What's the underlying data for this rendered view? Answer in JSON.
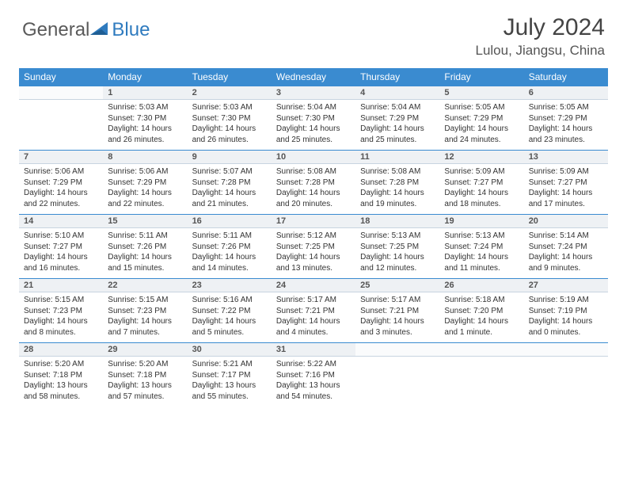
{
  "brand": {
    "word1": "General",
    "word2": "Blue"
  },
  "title": "July 2024",
  "location": "Lulou, Jiangsu, China",
  "colors": {
    "header_bg": "#3a8bd0",
    "daybar_bg": "#eef1f4",
    "rule": "#3a8bd0",
    "text": "#333333",
    "logo_gray": "#5a5a5a",
    "logo_blue": "#2f7bbf"
  },
  "weekdays": [
    "Sunday",
    "Monday",
    "Tuesday",
    "Wednesday",
    "Thursday",
    "Friday",
    "Saturday"
  ],
  "weeks": [
    [
      null,
      {
        "n": "1",
        "sr": "5:03 AM",
        "ss": "7:30 PM",
        "dl": "14 hours and 26 minutes."
      },
      {
        "n": "2",
        "sr": "5:03 AM",
        "ss": "7:30 PM",
        "dl": "14 hours and 26 minutes."
      },
      {
        "n": "3",
        "sr": "5:04 AM",
        "ss": "7:30 PM",
        "dl": "14 hours and 25 minutes."
      },
      {
        "n": "4",
        "sr": "5:04 AM",
        "ss": "7:29 PM",
        "dl": "14 hours and 25 minutes."
      },
      {
        "n": "5",
        "sr": "5:05 AM",
        "ss": "7:29 PM",
        "dl": "14 hours and 24 minutes."
      },
      {
        "n": "6",
        "sr": "5:05 AM",
        "ss": "7:29 PM",
        "dl": "14 hours and 23 minutes."
      }
    ],
    [
      {
        "n": "7",
        "sr": "5:06 AM",
        "ss": "7:29 PM",
        "dl": "14 hours and 22 minutes."
      },
      {
        "n": "8",
        "sr": "5:06 AM",
        "ss": "7:29 PM",
        "dl": "14 hours and 22 minutes."
      },
      {
        "n": "9",
        "sr": "5:07 AM",
        "ss": "7:28 PM",
        "dl": "14 hours and 21 minutes."
      },
      {
        "n": "10",
        "sr": "5:08 AM",
        "ss": "7:28 PM",
        "dl": "14 hours and 20 minutes."
      },
      {
        "n": "11",
        "sr": "5:08 AM",
        "ss": "7:28 PM",
        "dl": "14 hours and 19 minutes."
      },
      {
        "n": "12",
        "sr": "5:09 AM",
        "ss": "7:27 PM",
        "dl": "14 hours and 18 minutes."
      },
      {
        "n": "13",
        "sr": "5:09 AM",
        "ss": "7:27 PM",
        "dl": "14 hours and 17 minutes."
      }
    ],
    [
      {
        "n": "14",
        "sr": "5:10 AM",
        "ss": "7:27 PM",
        "dl": "14 hours and 16 minutes."
      },
      {
        "n": "15",
        "sr": "5:11 AM",
        "ss": "7:26 PM",
        "dl": "14 hours and 15 minutes."
      },
      {
        "n": "16",
        "sr": "5:11 AM",
        "ss": "7:26 PM",
        "dl": "14 hours and 14 minutes."
      },
      {
        "n": "17",
        "sr": "5:12 AM",
        "ss": "7:25 PM",
        "dl": "14 hours and 13 minutes."
      },
      {
        "n": "18",
        "sr": "5:13 AM",
        "ss": "7:25 PM",
        "dl": "14 hours and 12 minutes."
      },
      {
        "n": "19",
        "sr": "5:13 AM",
        "ss": "7:24 PM",
        "dl": "14 hours and 11 minutes."
      },
      {
        "n": "20",
        "sr": "5:14 AM",
        "ss": "7:24 PM",
        "dl": "14 hours and 9 minutes."
      }
    ],
    [
      {
        "n": "21",
        "sr": "5:15 AM",
        "ss": "7:23 PM",
        "dl": "14 hours and 8 minutes."
      },
      {
        "n": "22",
        "sr": "5:15 AM",
        "ss": "7:23 PM",
        "dl": "14 hours and 7 minutes."
      },
      {
        "n": "23",
        "sr": "5:16 AM",
        "ss": "7:22 PM",
        "dl": "14 hours and 5 minutes."
      },
      {
        "n": "24",
        "sr": "5:17 AM",
        "ss": "7:21 PM",
        "dl": "14 hours and 4 minutes."
      },
      {
        "n": "25",
        "sr": "5:17 AM",
        "ss": "7:21 PM",
        "dl": "14 hours and 3 minutes."
      },
      {
        "n": "26",
        "sr": "5:18 AM",
        "ss": "7:20 PM",
        "dl": "14 hours and 1 minute."
      },
      {
        "n": "27",
        "sr": "5:19 AM",
        "ss": "7:19 PM",
        "dl": "14 hours and 0 minutes."
      }
    ],
    [
      {
        "n": "28",
        "sr": "5:20 AM",
        "ss": "7:18 PM",
        "dl": "13 hours and 58 minutes."
      },
      {
        "n": "29",
        "sr": "5:20 AM",
        "ss": "7:18 PM",
        "dl": "13 hours and 57 minutes."
      },
      {
        "n": "30",
        "sr": "5:21 AM",
        "ss": "7:17 PM",
        "dl": "13 hours and 55 minutes."
      },
      {
        "n": "31",
        "sr": "5:22 AM",
        "ss": "7:16 PM",
        "dl": "13 hours and 54 minutes."
      },
      null,
      null,
      null
    ]
  ],
  "labels": {
    "sunrise": "Sunrise:",
    "sunset": "Sunset:",
    "daylight": "Daylight:"
  }
}
